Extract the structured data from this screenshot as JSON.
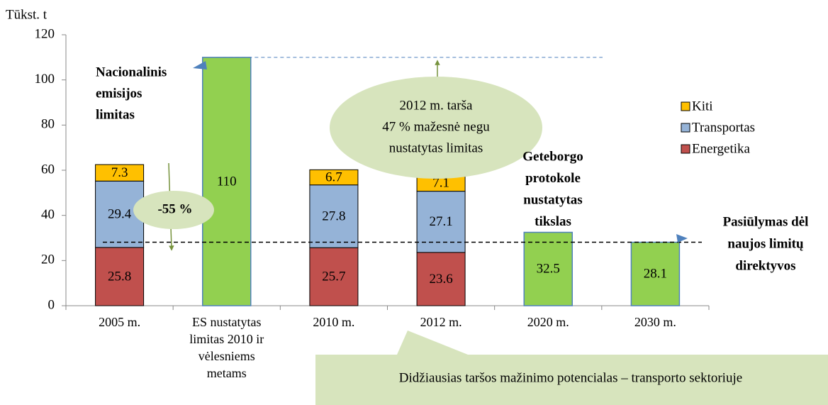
{
  "chart_data": {
    "type": "bar",
    "stacked": true,
    "y_label": "Tūkst. t",
    "categories": [
      "2005 m.",
      "ES nustatytas limitas 2010 ir vėlesniems metams",
      "2010 m.",
      "2012 m.",
      "2020 m.",
      "2030 m."
    ],
    "series": [
      {
        "name": "Energetika",
        "color": "#c0504d",
        "values": [
          25.8,
          null,
          25.7,
          23.6,
          null,
          null
        ]
      },
      {
        "name": "Transportas",
        "color": "#95b3d7",
        "values": [
          29.4,
          null,
          27.8,
          27.1,
          null,
          null
        ]
      },
      {
        "name": "Kiti",
        "color": "#ffc000",
        "values": [
          7.3,
          null,
          6.7,
          7.1,
          null,
          null
        ]
      }
    ],
    "targets": {
      "color": "#92d050",
      "values": [
        null,
        110,
        null,
        null,
        32.5,
        28.1
      ]
    },
    "ylim": [
      0,
      120
    ],
    "yticks": [
      0,
      20,
      40,
      60,
      80,
      100,
      120
    ],
    "annotations": [
      {
        "lines": [
          "Nacionalinis",
          "emisijos",
          "limitas"
        ]
      },
      {
        "lines": [
          "-55  %"
        ]
      },
      {
        "lines": [
          "2012 m. tarša",
          "47 % mažesnė negu",
          "nustatytas limitas"
        ]
      },
      {
        "lines": [
          "Geteborgo",
          "protokole",
          "nustatytas",
          "tikslas"
        ]
      },
      {
        "lines": [
          "Pasiūlymas dėl",
          "naujos limitų",
          "direktyvos"
        ]
      }
    ],
    "callout": "Didžiausias taršos mažinimo potencialas – transporto sektoriuje"
  }
}
